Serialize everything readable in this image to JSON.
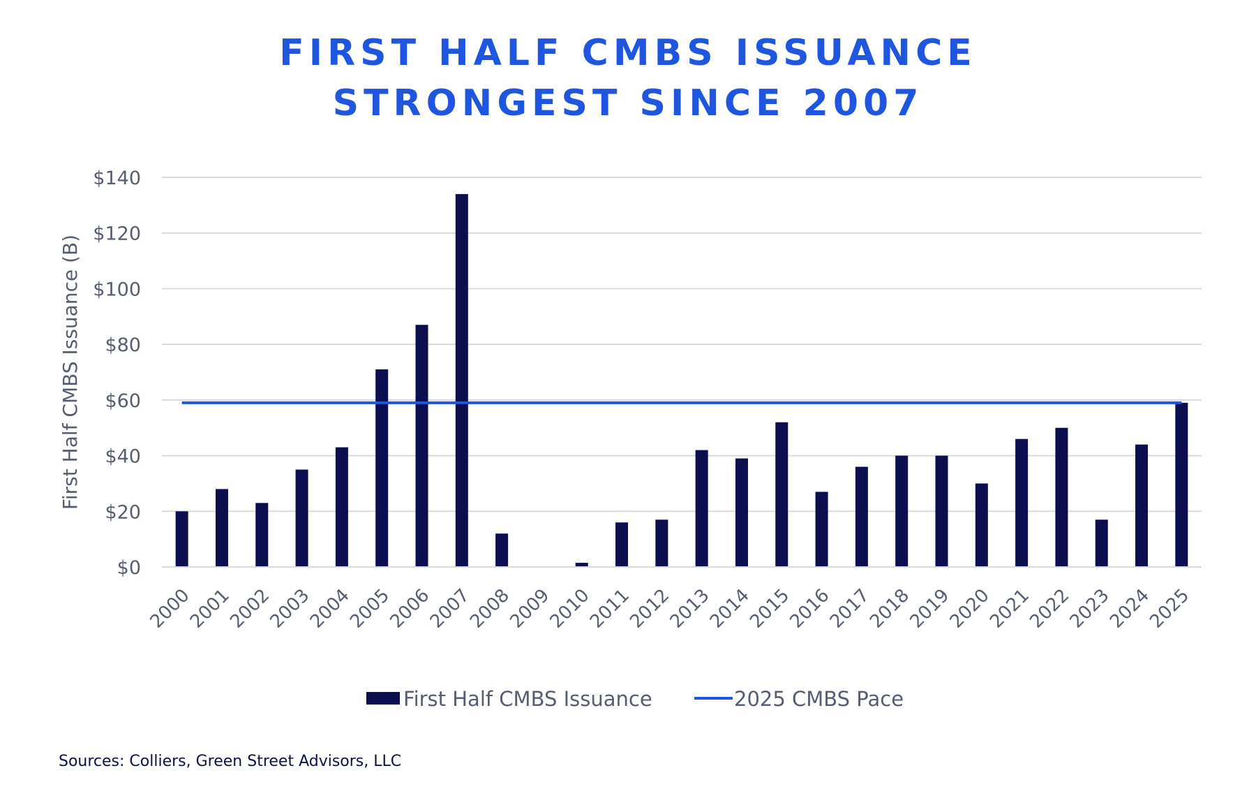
{
  "title_lines": [
    "FIRST HALF CMBS ISSUANCE",
    "STRONGEST SINCE 2007"
  ],
  "source": "Sources: Colliers, Green Street Advisors, LLC",
  "colors": {
    "bar": "#0b0f4f",
    "line": "#1e56e0",
    "grid": "#d9d9d9",
    "title": "#1e56e0"
  },
  "chart_data": {
    "type": "bar",
    "categories": [
      "2000",
      "2001",
      "2002",
      "2003",
      "2004",
      "2005",
      "2006",
      "2007",
      "2008",
      "2009",
      "2010",
      "2011",
      "2012",
      "2013",
      "2014",
      "2015",
      "2016",
      "2017",
      "2018",
      "2019",
      "2020",
      "2021",
      "2022",
      "2023",
      "2024",
      "2025"
    ],
    "series": [
      {
        "name": "First Half CMBS Issuance",
        "type": "bar",
        "values": [
          20,
          28,
          23,
          35,
          43,
          71,
          87,
          134,
          12,
          0,
          1.5,
          16,
          17,
          42,
          39,
          52,
          27,
          36,
          40,
          40,
          30,
          46,
          50,
          17,
          44,
          59
        ]
      },
      {
        "name": "2025 CMBS Pace",
        "type": "line",
        "value": 59
      }
    ],
    "ylabel": "First Half CMBS Issuance (B)",
    "xlabel": "",
    "ylim": [
      0,
      140
    ],
    "yticks": [
      0,
      20,
      40,
      60,
      80,
      100,
      120,
      140
    ],
    "ytick_labels": [
      "$0",
      "$20",
      "$40",
      "$60",
      "$80",
      "$100",
      "$120",
      "$140"
    ],
    "grid": true,
    "legend_position": "bottom"
  }
}
